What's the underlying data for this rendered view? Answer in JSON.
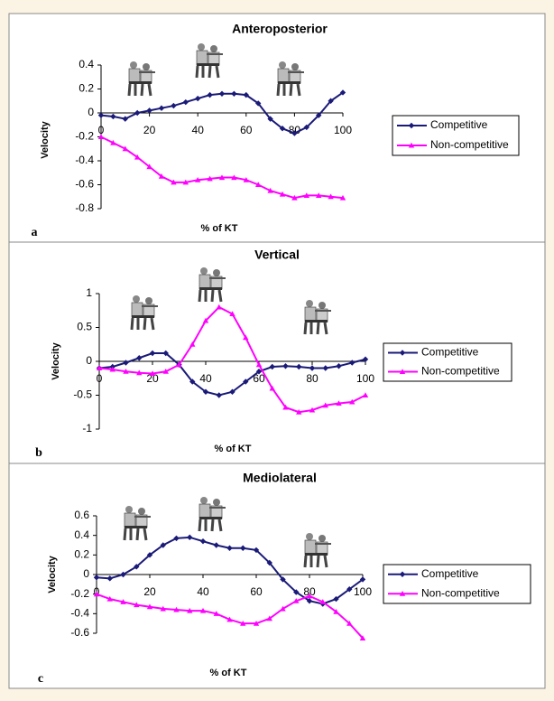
{
  "chart_data": [
    {
      "type": "line",
      "title": "Anteroposterior",
      "panel_label": "a",
      "x_label": "% of KT",
      "y_label": "Velocity",
      "x": [
        0,
        5,
        10,
        15,
        20,
        25,
        30,
        35,
        40,
        45,
        50,
        55,
        60,
        65,
        70,
        75,
        80,
        85,
        90,
        95,
        100
      ],
      "series": [
        {
          "name": "Competitive",
          "color": "#1a1a78",
          "marker": "diamond",
          "values": [
            -0.02,
            -0.03,
            -0.05,
            0,
            0.02,
            0.04,
            0.06,
            0.09,
            0.12,
            0.15,
            0.16,
            0.16,
            0.15,
            0.08,
            -0.05,
            -0.13,
            -0.17,
            -0.12,
            -0.02,
            0.1,
            0.17
          ]
        },
        {
          "name": "Non-competitive",
          "color": "#ff00ff",
          "marker": "triangle",
          "values": [
            -0.2,
            -0.25,
            -0.3,
            -0.37,
            -0.45,
            -0.53,
            -0.58,
            -0.58,
            -0.56,
            -0.55,
            -0.54,
            -0.54,
            -0.56,
            -0.6,
            -0.65,
            -0.68,
            -0.71,
            -0.69,
            -0.69,
            -0.7,
            -0.71
          ]
        }
      ],
      "xlim": [
        0,
        100
      ],
      "xticks": [
        0,
        20,
        40,
        60,
        80,
        100
      ],
      "ylim": [
        -0.8,
        0.4
      ],
      "yticks": [
        0.4,
        0.2,
        0,
        -0.2,
        -0.4,
        -0.6,
        -0.8
      ]
    },
    {
      "type": "line",
      "title": "Vertical",
      "panel_label": "b",
      "x_label": "% of KT",
      "y_label": "Velocity",
      "x": [
        0,
        5,
        10,
        15,
        20,
        25,
        30,
        35,
        40,
        45,
        50,
        55,
        60,
        65,
        70,
        75,
        80,
        85,
        90,
        95,
        100
      ],
      "series": [
        {
          "name": "Competitive",
          "color": "#1a1a78",
          "marker": "diamond",
          "values": [
            -0.1,
            -0.08,
            -0.02,
            0.05,
            0.12,
            0.12,
            -0.05,
            -0.3,
            -0.45,
            -0.5,
            -0.45,
            -0.3,
            -0.15,
            -0.08,
            -0.07,
            -0.08,
            -0.1,
            -0.1,
            -0.07,
            -0.02,
            0.03
          ]
        },
        {
          "name": "Non-competitive",
          "color": "#ff00ff",
          "marker": "triangle",
          "values": [
            -0.1,
            -0.12,
            -0.15,
            -0.17,
            -0.18,
            -0.15,
            -0.05,
            0.25,
            0.6,
            0.8,
            0.7,
            0.35,
            -0.05,
            -0.4,
            -0.68,
            -0.75,
            -0.72,
            -0.65,
            -0.62,
            -0.6,
            -0.5
          ]
        }
      ],
      "xlim": [
        0,
        100
      ],
      "xticks": [
        0,
        20,
        40,
        60,
        80,
        100
      ],
      "ylim": [
        -1,
        1
      ],
      "yticks": [
        1,
        0.5,
        0,
        -0.5,
        -1
      ]
    },
    {
      "type": "line",
      "title": "Mediolateral",
      "panel_label": "c",
      "x_label": "% of KT",
      "y_label": "Velocity",
      "x": [
        0,
        5,
        10,
        15,
        20,
        25,
        30,
        35,
        40,
        45,
        50,
        55,
        60,
        65,
        70,
        75,
        80,
        85,
        90,
        95,
        100
      ],
      "series": [
        {
          "name": "Competitive",
          "color": "#1a1a78",
          "marker": "diamond",
          "values": [
            -0.03,
            -0.04,
            0,
            0.08,
            0.2,
            0.3,
            0.37,
            0.38,
            0.34,
            0.3,
            0.27,
            0.27,
            0.25,
            0.12,
            -0.05,
            -0.18,
            -0.27,
            -0.3,
            -0.25,
            -0.15,
            -0.05
          ]
        },
        {
          "name": "Non-competitive",
          "color": "#ff00ff",
          "marker": "triangle",
          "values": [
            -0.2,
            -0.25,
            -0.28,
            -0.31,
            -0.33,
            -0.35,
            -0.36,
            -0.37,
            -0.37,
            -0.4,
            -0.46,
            -0.5,
            -0.5,
            -0.45,
            -0.35,
            -0.27,
            -0.22,
            -0.28,
            -0.38,
            -0.5,
            -0.65
          ]
        }
      ],
      "xlim": [
        0,
        100
      ],
      "xticks": [
        0,
        20,
        40,
        60,
        80,
        100
      ],
      "ylim": [
        -0.6,
        0.6
      ],
      "yticks": [
        0.6,
        0.4,
        0.2,
        0,
        -0.2,
        -0.4,
        -0.6
      ]
    }
  ]
}
